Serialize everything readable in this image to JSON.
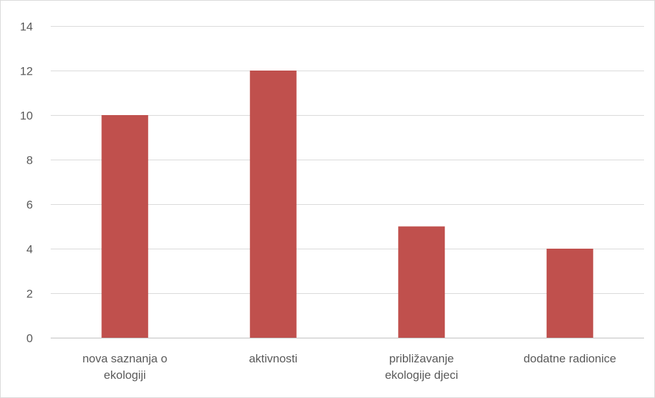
{
  "chart_data": {
    "type": "bar",
    "categories": [
      [
        "nova saznanja o",
        "ekologiji"
      ],
      [
        "aktivnosti"
      ],
      [
        "približavanje",
        "ekologije djeci"
      ],
      [
        "dodatne radionice"
      ]
    ],
    "values": [
      10,
      12,
      5,
      4
    ],
    "ylim": [
      0,
      14
    ],
    "yticks": [
      0,
      2,
      4,
      6,
      8,
      10,
      12,
      14
    ],
    "grid": true,
    "legend": "none",
    "bar_color": "#C0504D",
    "grid_color": "#d9d9d9",
    "axis_color": "#bfbfbf"
  }
}
